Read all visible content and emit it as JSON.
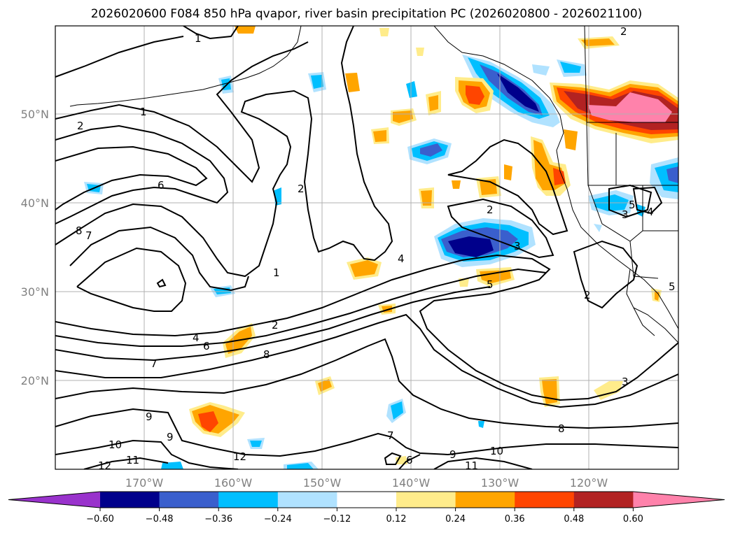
{
  "title": "2026020600 F084 850 hPa qvapor, river basin precipitation PC (2026020800 - 2026021100)",
  "lat_labels": [
    "50°N",
    "40°N",
    "30°N",
    "20°N"
  ],
  "lon_labels": [
    "170°W",
    "160°W",
    "150°W",
    "140°W",
    "130°W",
    "120°W"
  ],
  "colorbar": {
    "colors": [
      "#9932cc",
      "#00008b",
      "#3a5fcd",
      "#00bfff",
      "#b0e2ff",
      "#ffffff",
      "#ffec8b",
      "#ffa500",
      "#ff4500",
      "#b22222",
      "#ff82ab"
    ],
    "tick_labels": [
      "−0.60",
      "−0.48",
      "−0.36",
      "−0.24",
      "−0.12",
      "0.12",
      "0.24",
      "0.36",
      "0.48",
      "0.60"
    ]
  },
  "contour_labels": [
    "1",
    "2",
    "2",
    "1",
    "2",
    "6",
    "2",
    "8",
    "7",
    "1",
    "4",
    "3",
    "2",
    "3",
    "5",
    "4",
    "2",
    "4",
    "6",
    "8",
    "7",
    "5",
    "3",
    "9",
    "9",
    "10",
    "11",
    "12",
    "12",
    "7",
    "6",
    "9",
    "10",
    "11",
    "8",
    "5"
  ]
}
